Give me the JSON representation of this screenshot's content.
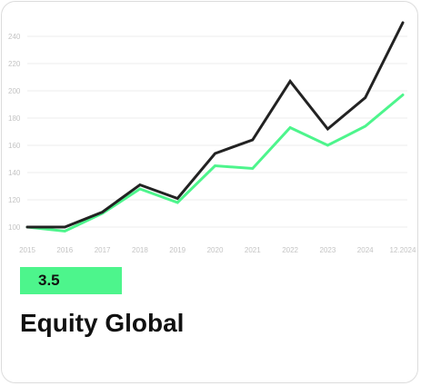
{
  "card": {
    "score": "3.5",
    "title": "Equity Global"
  },
  "colors": {
    "primary_line": "#222222",
    "secondary_line": "#4df58c",
    "badge": "#4df58c",
    "grid": "#ececec",
    "tick_text": "#c4c4c4"
  },
  "chart_data": {
    "type": "line",
    "categories": [
      "2015",
      "2016",
      "2017",
      "2018",
      "2019",
      "2020",
      "2021",
      "2022",
      "2023",
      "2024",
      "12.2024"
    ],
    "series": [
      {
        "values": [
          100,
          100,
          111,
          131,
          121,
          154,
          164,
          207,
          172,
          195,
          250
        ]
      },
      {
        "values": [
          100,
          97,
          110,
          128,
          118,
          145,
          143,
          173,
          160,
          174,
          197
        ]
      }
    ],
    "yticks": [
      100,
      120,
      140,
      160,
      180,
      200,
      220,
      240
    ],
    "ylim": [
      90,
      252
    ],
    "grid": true,
    "legend": "none"
  }
}
